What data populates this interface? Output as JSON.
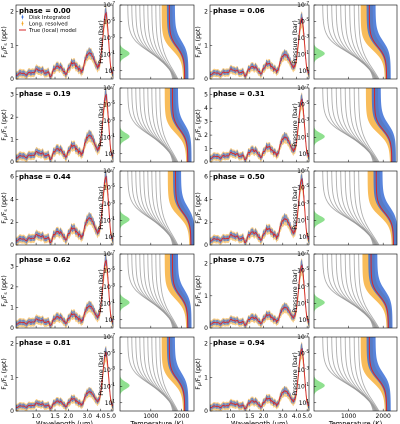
{
  "chart_data": {
    "type": "line",
    "layout": {
      "rows": 5,
      "pairs_per_row": 2
    },
    "legend": {
      "placement": "top-left",
      "entries": [
        {
          "label": "Disk Integrated",
          "color": "#3b6fd6",
          "marker": "errorbar-point"
        },
        {
          "label": "Long. resolved",
          "color": "#f5a623",
          "marker": "errorbar-point"
        },
        {
          "label": "True (local) model",
          "color": "#d62728",
          "marker": "line"
        }
      ]
    },
    "spectrum_axes": {
      "xlabel": "Wavelength (um)",
      "ylabel": "F_p/F_s (ppt)",
      "ylabel_parts": {
        "main": "F",
        "sub1": "p",
        "slash": "/F",
        "sub2": "s",
        "unit": " (ppt)"
      },
      "xscale": "log",
      "xlim": [
        0.65,
        5.2
      ],
      "xticks": [
        1.0,
        1.5,
        2.0,
        3.0,
        4.0,
        5.0
      ],
      "xtick_labels": [
        "1.0",
        "1.5",
        "2.0",
        "3.0",
        "4.0",
        "5.0"
      ]
    },
    "profile_axes": {
      "xlabel": "Temperature (K)",
      "ylabel": "Pressure (bar)",
      "xlim": [
        0,
        2400
      ],
      "xticks": [
        1000,
        2000
      ],
      "xtick_labels": [
        "1000",
        "2000"
      ],
      "yscale": "log",
      "ylim_bar": [
        100,
        1e-07
      ],
      "yticks_exp": [
        -7,
        -5,
        -3,
        -1,
        1
      ],
      "ytick_base": "10"
    },
    "colors": {
      "disk": "#3b6fd6",
      "long": "#f5a623",
      "model": "#d62728",
      "gray": "#9a9a9a",
      "green": "#5fd35f"
    },
    "phases": [
      {
        "label": "phase = 0.00",
        "phase": 0.0,
        "ylim": [
          0,
          2.2
        ],
        "yticks": [
          0,
          1,
          2
        ],
        "peak": 1.9,
        "base": 0.06,
        "hot": 1900
      },
      {
        "label": "phase = 0.06",
        "phase": 0.06,
        "ylim": [
          0,
          2.2
        ],
        "yticks": [
          0,
          1,
          2
        ],
        "peak": 1.75,
        "base": 0.08,
        "hot": 1900
      },
      {
        "label": "phase = 0.19",
        "phase": 0.19,
        "ylim": [
          0,
          3.3
        ],
        "yticks": [
          0,
          1,
          2,
          3
        ],
        "peak": 2.9,
        "base": 0.1,
        "hot": 2000
      },
      {
        "label": "phase = 0.31",
        "phase": 0.31,
        "ylim": [
          0,
          5.5
        ],
        "yticks": [
          0,
          1,
          2,
          3,
          4,
          5
        ],
        "peak": 4.5,
        "base": 0.15,
        "hot": 2050
      },
      {
        "label": "phase = 0.44",
        "phase": 0.44,
        "ylim": [
          0,
          6.5
        ],
        "yticks": [
          0,
          2,
          4,
          6
        ],
        "peak": 5.8,
        "base": 0.2,
        "hot": 2100
      },
      {
        "label": "phase = 0.50",
        "phase": 0.5,
        "ylim": [
          0,
          6.5
        ],
        "yticks": [
          0,
          2,
          4,
          6
        ],
        "peak": 5.6,
        "base": 0.2,
        "hot": 2100
      },
      {
        "label": "phase = 0.62",
        "phase": 0.62,
        "ylim": [
          0,
          3.6
        ],
        "yticks": [
          0,
          1,
          2,
          3
        ],
        "peak": 3.2,
        "base": 0.12,
        "hot": 2000
      },
      {
        "label": "phase = 0.75",
        "phase": 0.75,
        "ylim": [
          0,
          2.3
        ],
        "yticks": [
          0,
          1,
          2
        ],
        "peak": 1.9,
        "base": 0.08,
        "hot": 1950
      },
      {
        "label": "phase = 0.81",
        "phase": 0.81,
        "ylim": [
          0,
          2.2
        ],
        "yticks": [
          0,
          1,
          2
        ],
        "peak": 1.7,
        "base": 0.07,
        "hot": 1900
      },
      {
        "label": "phase = 0.94",
        "phase": 0.94,
        "ylim": [
          0,
          2.2
        ],
        "yticks": [
          0,
          1,
          2
        ],
        "peak": 1.8,
        "base": 0.06,
        "hot": 1900
      }
    ]
  }
}
